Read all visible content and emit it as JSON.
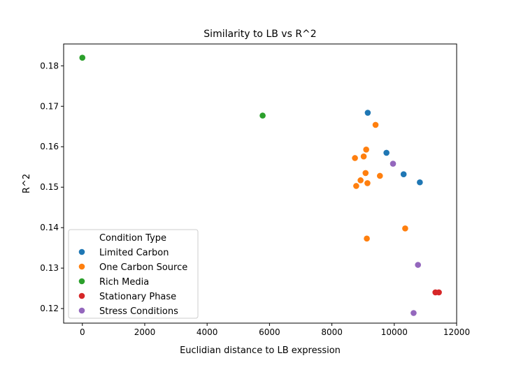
{
  "chart_data": {
    "type": "scatter",
    "title": "Similarity to LB vs R^2",
    "xlabel": "Euclidian distance to LB expression",
    "ylabel": "R^2",
    "xlim": [
      -600,
      12000
    ],
    "ylim": [
      0.1164,
      0.1854
    ],
    "xticks": [
      0,
      2000,
      4000,
      6000,
      8000,
      10000,
      12000
    ],
    "xtick_labels": [
      "0",
      "2000",
      "4000",
      "6000",
      "8000",
      "10000",
      "12000"
    ],
    "yticks": [
      0.12,
      0.13,
      0.14,
      0.15,
      0.16,
      0.17,
      0.18
    ],
    "ytick_labels": [
      "0.12",
      "0.13",
      "0.14",
      "0.15",
      "0.16",
      "0.17",
      "0.18"
    ],
    "grid": false,
    "legend": {
      "title": "Condition Type",
      "position": "lower-left"
    },
    "series": [
      {
        "name": "Limited Carbon",
        "color": "#1f77b4",
        "points": [
          [
            9150,
            0.1684
          ],
          [
            9750,
            0.1585
          ],
          [
            10300,
            0.1532
          ],
          [
            10820,
            0.1512
          ]
        ]
      },
      {
        "name": "One Carbon Source",
        "color": "#ff7f0e",
        "points": [
          [
            9400,
            0.1654
          ],
          [
            9100,
            0.1593
          ],
          [
            9020,
            0.1576
          ],
          [
            8740,
            0.1572
          ],
          [
            9080,
            0.1535
          ],
          [
            9540,
            0.1528
          ],
          [
            8920,
            0.1517
          ],
          [
            9140,
            0.151
          ],
          [
            8780,
            0.1503
          ],
          [
            10350,
            0.1398
          ],
          [
            9120,
            0.1373
          ]
        ]
      },
      {
        "name": "Rich Media",
        "color": "#2ca02c",
        "points": [
          [
            0,
            0.182
          ],
          [
            5780,
            0.1677
          ]
        ]
      },
      {
        "name": "Stationary Phase",
        "color": "#d62728",
        "points": [
          [
            11320,
            0.124
          ],
          [
            11430,
            0.124
          ]
        ]
      },
      {
        "name": "Stress Conditions",
        "color": "#9467bd",
        "points": [
          [
            9960,
            0.1558
          ],
          [
            10760,
            0.1308
          ],
          [
            10620,
            0.1189
          ]
        ]
      }
    ]
  }
}
